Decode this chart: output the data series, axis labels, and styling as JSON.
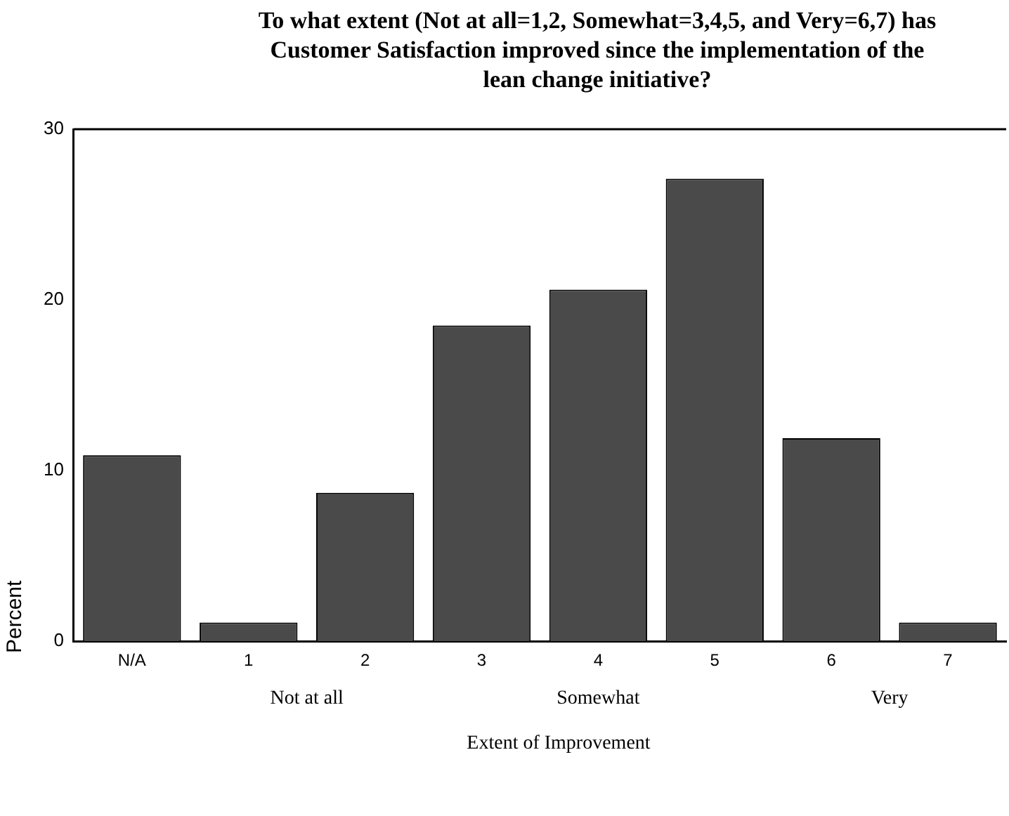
{
  "chart_data": {
    "type": "bar",
    "title": "To what extent (Not at all=1,2, Somewhat=3,4,5, and Very=6,7) has Customer Satisfaction improved since the implementation of the lean change initiative?",
    "xlabel": "Extent of Improvement",
    "ylabel": "Percent",
    "categories": [
      "N/A",
      "1",
      "2",
      "3",
      "4",
      "5",
      "6",
      "7"
    ],
    "values": [
      10.9,
      1.1,
      8.7,
      18.5,
      20.6,
      27.1,
      11.9,
      1.1
    ],
    "color": "#4a4a4a",
    "ylim": [
      0,
      30
    ],
    "yticks": [
      0,
      10,
      20,
      30
    ],
    "grid": false,
    "legend": false,
    "annotations": [
      "Not at all",
      "Somewhat",
      "Very"
    ]
  }
}
